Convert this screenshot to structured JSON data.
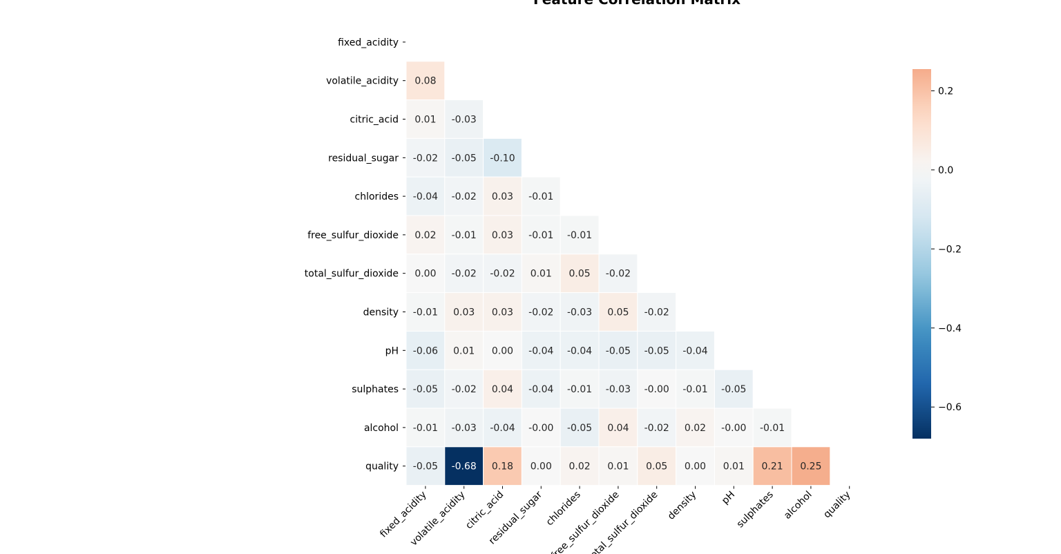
{
  "chart_data": {
    "type": "heatmap",
    "title": "Feature Correlation Matrix",
    "labels": [
      "fixed_acidity",
      "volatile_acidity",
      "citric_acid",
      "residual_sugar",
      "chlorides",
      "free_sulfur_dioxide",
      "total_sulfur_dioxide",
      "density",
      "pH",
      "sulphates",
      "alcohol",
      "quality"
    ],
    "mask": "upper-triangle-including-diagonal",
    "rows": [
      [],
      [
        "0.08"
      ],
      [
        "0.01",
        "-0.03"
      ],
      [
        "-0.02",
        "-0.05",
        "-0.10"
      ],
      [
        "-0.04",
        "-0.02",
        "0.03",
        "-0.01"
      ],
      [
        "0.02",
        "-0.01",
        "0.03",
        "-0.01",
        "-0.01"
      ],
      [
        "0.00",
        "-0.02",
        "-0.02",
        "0.01",
        "0.05",
        "-0.02"
      ],
      [
        "-0.01",
        "0.03",
        "0.03",
        "-0.02",
        "-0.03",
        "0.05",
        "-0.02"
      ],
      [
        "-0.06",
        "0.01",
        "0.00",
        "-0.04",
        "-0.04",
        "-0.05",
        "-0.05",
        "-0.04"
      ],
      [
        "-0.05",
        "-0.02",
        "0.04",
        "-0.04",
        "-0.01",
        "-0.03",
        "-0.00",
        "-0.01",
        "-0.05"
      ],
      [
        "-0.01",
        "-0.03",
        "-0.04",
        "-0.00",
        "-0.05",
        "0.04",
        "-0.02",
        "0.02",
        "-0.00",
        "-0.01"
      ],
      [
        "-0.05",
        "-0.68",
        "0.18",
        "0.00",
        "0.02",
        "0.01",
        "0.05",
        "0.00",
        "0.01",
        "0.21",
        "0.25"
      ]
    ],
    "colorbar": {
      "colormap": "RdBu_r",
      "range": [
        -0.68,
        0.255
      ],
      "ticks": [
        "0.2",
        "0.0",
        "−0.2",
        "−0.4",
        "−0.6"
      ],
      "tick_values": [
        0.2,
        0.0,
        -0.2,
        -0.4,
        -0.6
      ]
    },
    "colors": {
      "neg_end": "#053061",
      "pos_end": "#f4a582",
      "mid": "#f7f7f7",
      "cell_border": "#ffffff"
    }
  }
}
